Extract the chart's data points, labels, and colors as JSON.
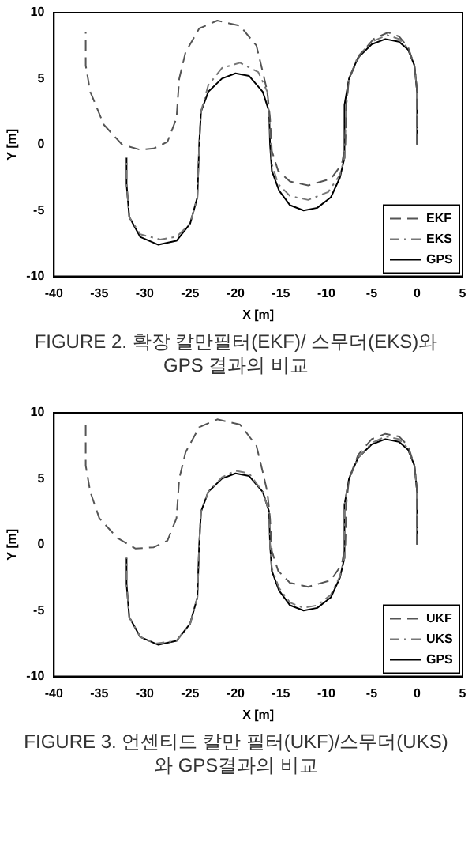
{
  "chart_data": [
    {
      "type": "line",
      "title": "FIGURE 2. 확장 칼만필터(EKF)/ 스무더(EKS)와 GPS 결과의 비교",
      "xlabel": "X [m]",
      "ylabel": "Y [m]",
      "xlim": [
        -40,
        5
      ],
      "ylim": [
        -10,
        10
      ],
      "xticks": [
        -40,
        -35,
        -30,
        -25,
        -20,
        -15,
        -10,
        -5,
        0,
        5
      ],
      "yticks": [
        -10,
        -5,
        0,
        5,
        10
      ],
      "grid": false,
      "legend": "bottom right",
      "marker": "none",
      "series": [
        {
          "name": "EKF",
          "color": "#555555",
          "line_style": "dashed",
          "x": [
            0,
            0,
            -0.3,
            -1,
            -2,
            -3.2,
            -4.8,
            -6.3,
            -7.5,
            -7.8,
            -7.9,
            -8.3,
            -9.5,
            -12,
            -14,
            -15.3,
            -16,
            -16.2,
            -16.5,
            -17,
            -17.7,
            -19.5,
            -22,
            -24,
            -25.5,
            -26.2,
            -26.5,
            -27.5,
            -29,
            -30.5,
            -32.5,
            -34.5,
            -36,
            -36.5,
            -36.5
          ],
          "values": [
            0,
            4,
            6,
            7.4,
            8.2,
            8.5,
            8,
            6.8,
            5,
            3,
            0,
            -1.5,
            -2.6,
            -3.1,
            -2.8,
            -2,
            -0.5,
            2,
            4,
            5.5,
            7.5,
            9,
            9.4,
            8.8,
            7,
            5,
            2,
            0.2,
            -0.3,
            -0.4,
            0,
            1.5,
            4,
            6,
            8.5
          ]
        },
        {
          "name": "EKS",
          "color": "#777777",
          "line_style": "dotted",
          "x": [
            0,
            0,
            -0.3,
            -1,
            -2,
            -3.3,
            -5,
            -6.5,
            -7.5,
            -7.8,
            -8,
            -8.5,
            -9.8,
            -12,
            -14,
            -15.3,
            -16,
            -16.2,
            -16.5,
            -17.5,
            -19.5,
            -21.5,
            -23,
            -23.8,
            -24,
            -24.2,
            -25,
            -26.5,
            -28.3,
            -30.5,
            -31.7,
            -32,
            -32
          ],
          "values": [
            0,
            4,
            6,
            7.3,
            8,
            8.3,
            7.8,
            6.7,
            5,
            3,
            -1,
            -2.3,
            -3.6,
            -4.2,
            -3.9,
            -3,
            -1.5,
            1,
            4,
            5.5,
            6.2,
            5.8,
            4.5,
            2.5,
            0,
            -4,
            -6,
            -7,
            -7.2,
            -6.8,
            -5.5,
            -3,
            -1
          ]
        },
        {
          "name": "GPS",
          "color": "#000000",
          "line_style": "solid",
          "x": [
            0,
            0,
            -0.3,
            -1,
            -2,
            -3.5,
            -5,
            -6.5,
            -7.5,
            -8,
            -8,
            -8.5,
            -9.5,
            -11,
            -12.5,
            -14,
            -15.2,
            -16,
            -16.2,
            -16.3,
            -17,
            -18.5,
            -20,
            -21.5,
            -23,
            -23.8,
            -24,
            -24.2,
            -25,
            -26.5,
            -28.5,
            -30.5,
            -31.7,
            -32,
            -32
          ],
          "values": [
            0,
            4,
            6,
            7.2,
            7.8,
            8,
            7.6,
            6.6,
            5,
            3,
            -1,
            -2.5,
            -4,
            -4.8,
            -5,
            -4.6,
            -3.5,
            -2,
            0,
            2.5,
            4,
            5.2,
            5.4,
            5,
            4,
            2.5,
            0,
            -4,
            -6,
            -7.3,
            -7.6,
            -7,
            -5.5,
            -3,
            -1
          ]
        }
      ]
    },
    {
      "type": "line",
      "title": "FIGURE 3. 언센티드 칼만 필터(UKF)/스무더(UKS)와 GPS결과의 비교",
      "xlabel": "X [m]",
      "ylabel": "Y [m]",
      "xlim": [
        -40,
        5
      ],
      "ylim": [
        -10,
        10
      ],
      "xticks": [
        -40,
        -35,
        -30,
        -25,
        -20,
        -15,
        -10,
        -5,
        0,
        5
      ],
      "yticks": [
        -10,
        -5,
        0,
        5,
        10
      ],
      "grid": false,
      "legend": "bottom right",
      "marker": "none",
      "series": [
        {
          "name": "UKF",
          "color": "#555555",
          "line_style": "dashed",
          "x": [
            0,
            0,
            -0.3,
            -1,
            -2,
            -3.5,
            -5,
            -6.5,
            -7.5,
            -7.8,
            -7.9,
            -8.3,
            -9.5,
            -12,
            -14,
            -15.3,
            -16,
            -16.2,
            -16.5,
            -17,
            -17.7,
            -19.5,
            -22,
            -24,
            -25.5,
            -26.2,
            -26.5,
            -27.5,
            -29,
            -31,
            -33,
            -35,
            -36,
            -36.5,
            -36.5
          ],
          "values": [
            0,
            4,
            6,
            7.5,
            8.2,
            8.4,
            8,
            6.8,
            5,
            3,
            0,
            -1.5,
            -2.7,
            -3.2,
            -2.9,
            -2,
            -0.5,
            2,
            4,
            5.5,
            7.5,
            9.1,
            9.5,
            8.9,
            7,
            5,
            2,
            0.3,
            -0.2,
            -0.3,
            0.5,
            2,
            4,
            6,
            9.3
          ]
        },
        {
          "name": "UKS",
          "color": "#777777",
          "line_style": "dotted",
          "x": [
            0,
            0,
            -0.3,
            -1,
            -2,
            -3.5,
            -5,
            -6.5,
            -7.5,
            -8,
            -8,
            -8.5,
            -9.5,
            -11,
            -12.5,
            -14,
            -15.2,
            -16,
            -16.2,
            -16.3,
            -17,
            -18.5,
            -20,
            -21.5,
            -23,
            -23.8,
            -24,
            -24.2,
            -25,
            -26.5,
            -28.8,
            -30.5,
            -31.7,
            -32,
            -32
          ],
          "values": [
            0,
            4,
            6,
            7.3,
            8,
            8.2,
            7.7,
            6.6,
            5,
            3,
            -1,
            -2.4,
            -3.8,
            -4.6,
            -4.8,
            -4.4,
            -3.3,
            -1.8,
            0,
            2.5,
            4,
            5.4,
            5.6,
            5.1,
            4,
            2.5,
            0,
            -4,
            -6,
            -7.3,
            -7.5,
            -7,
            -5.5,
            -3,
            -1
          ]
        },
        {
          "name": "GPS",
          "color": "#000000",
          "line_style": "solid",
          "x": [
            0,
            0,
            -0.3,
            -1,
            -2,
            -3.5,
            -5,
            -6.5,
            -7.5,
            -8,
            -8,
            -8.5,
            -9.5,
            -11,
            -12.5,
            -14,
            -15.2,
            -16,
            -16.2,
            -16.3,
            -17,
            -18.5,
            -20,
            -21.5,
            -23,
            -23.8,
            -24,
            -24.2,
            -25,
            -26.5,
            -28.5,
            -30.5,
            -31.7,
            -32,
            -32
          ],
          "values": [
            0,
            4,
            6,
            7.2,
            7.8,
            8,
            7.6,
            6.6,
            5,
            3,
            -1,
            -2.5,
            -4,
            -4.8,
            -5,
            -4.6,
            -3.5,
            -2,
            0,
            2.5,
            4,
            5.2,
            5.4,
            5,
            4,
            2.5,
            0,
            -4,
            -6,
            -7.3,
            -7.6,
            -7,
            -5.5,
            -3,
            -1
          ]
        }
      ]
    }
  ]
}
